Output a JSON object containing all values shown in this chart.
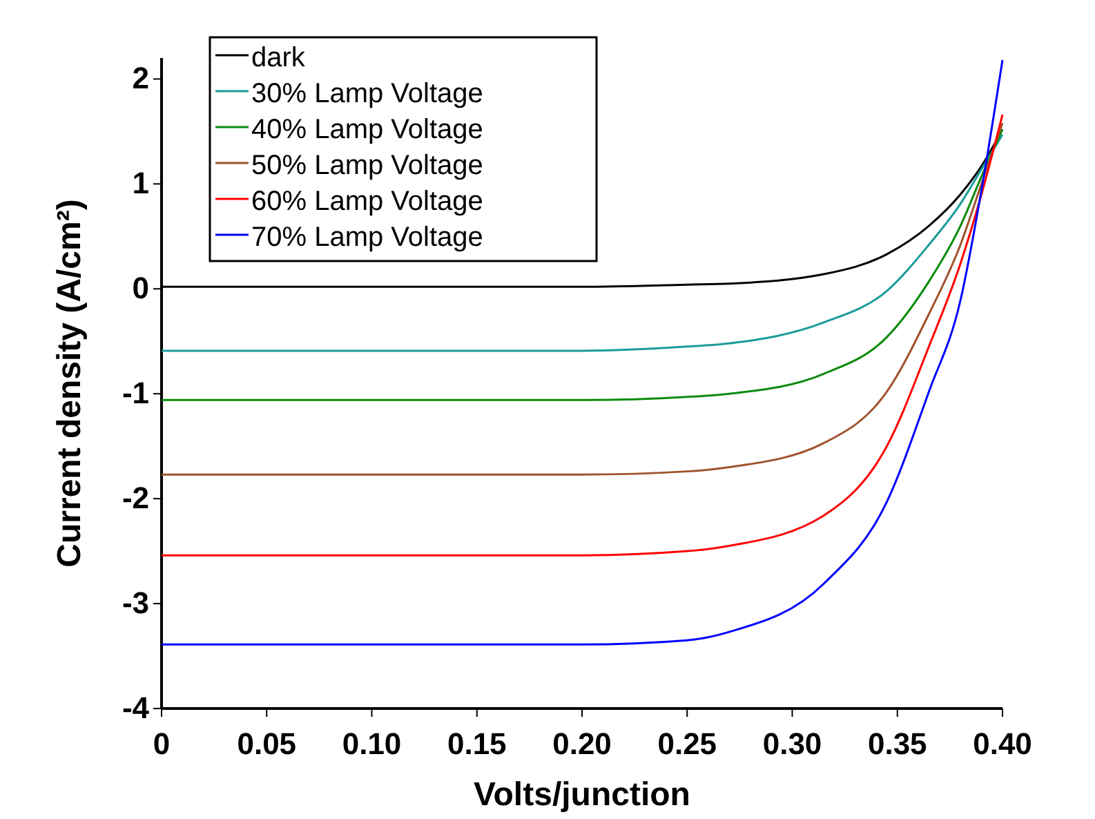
{
  "chart_data": {
    "type": "line",
    "xlabel": "Volts/junction",
    "ylabel": "Current density (A/cm²)",
    "xlim": [
      0,
      0.4
    ],
    "xticks": [
      0,
      {
        "value": 0.05,
        "label": "0.05"
      },
      {
        "value": 0.1,
        "label": "0.10"
      },
      {
        "value": 0.15,
        "label": "0.15"
      },
      {
        "value": 0.2,
        "label": "0.20"
      },
      {
        "value": 0.25,
        "label": "0.25"
      },
      {
        "value": 0.3,
        "label": "0.30"
      },
      {
        "value": 0.35,
        "label": "0.35"
      },
      {
        "value": 0.4,
        "label": "0.40"
      }
    ],
    "ylim": [
      -4,
      2.2
    ],
    "yticks": [
      -4,
      -3,
      -2,
      -1,
      0,
      1,
      2
    ],
    "grid": false,
    "legend": "top left",
    "line_style": "solid",
    "marker": "none",
    "x": [
      0,
      0.2,
      0.25,
      0.27,
      0.315,
      0.345,
      0.365,
      0.38,
      0.39,
      0.4
    ],
    "series": [
      {
        "name": "dark",
        "color": "#000000",
        "values": [
          0.02,
          0.02,
          0.04,
          0.05,
          0.14,
          0.33,
          0.6,
          0.9,
          1.17,
          1.52
        ]
      },
      {
        "name": "30% Lamp Voltage",
        "color": "#1a9a9a",
        "values": [
          -0.59,
          -0.59,
          -0.55,
          -0.52,
          -0.32,
          -0.02,
          0.42,
          0.81,
          1.14,
          1.47
        ]
      },
      {
        "name": "40% Lamp Voltage",
        "color": "#0a8a0a",
        "values": [
          -1.06,
          -1.06,
          -1.03,
          -1.0,
          -0.81,
          -0.46,
          0.07,
          0.6,
          1.07,
          1.52
        ]
      },
      {
        "name": "50% Lamp Voltage",
        "color": "#a0522d",
        "values": [
          -1.77,
          -1.77,
          -1.74,
          -1.7,
          -1.47,
          -0.98,
          -0.24,
          0.42,
          1.0,
          1.58
        ]
      },
      {
        "name": "60% Lamp Voltage",
        "color": "#ff0000",
        "values": [
          -2.54,
          -2.54,
          -2.5,
          -2.45,
          -2.16,
          -1.5,
          -0.55,
          0.24,
          0.9,
          1.66
        ]
      },
      {
        "name": "70% Lamp Voltage",
        "color": "#0000ff",
        "values": [
          -3.39,
          -3.39,
          -3.35,
          -3.27,
          -2.81,
          -2.03,
          -0.98,
          -0.11,
          0.94,
          2.18
        ]
      }
    ]
  }
}
